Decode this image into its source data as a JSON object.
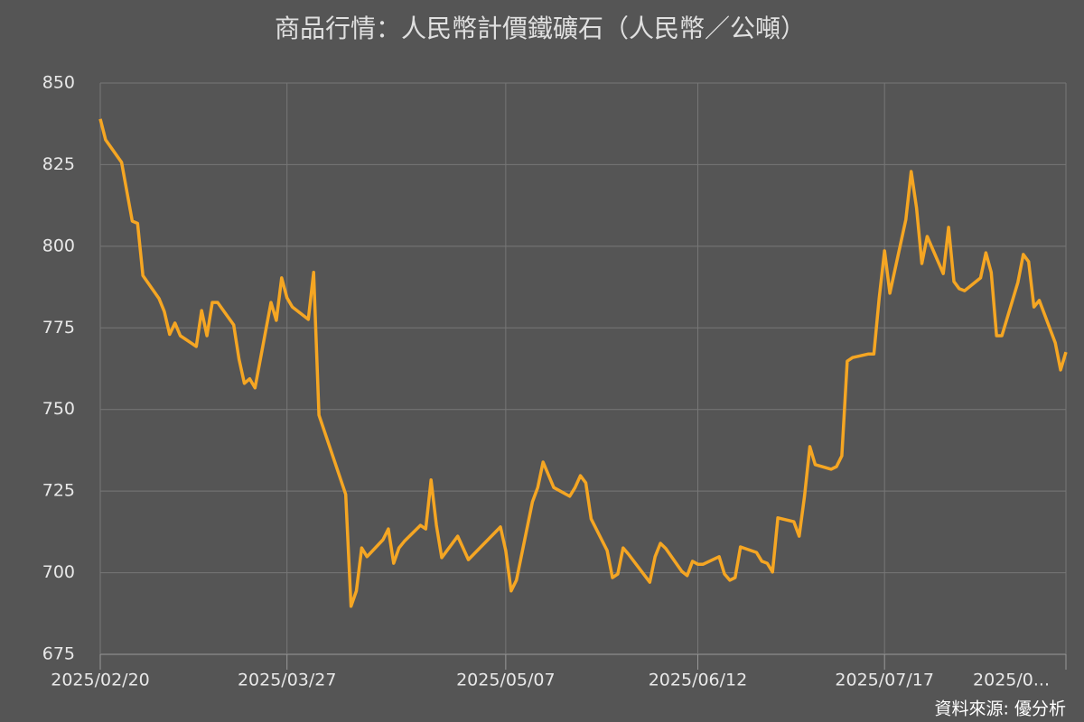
{
  "chart_data": {
    "type": "line",
    "title": "商品行情：人民幣計價鐵礦石（人民幣／公噸）",
    "source": "資料來源: 優分析",
    "x": [
      "2025/02/20",
      "2025/02/21",
      "2025/02/24",
      "2025/02/26",
      "2025/02/27",
      "2025/02/28",
      "2025/03/03",
      "2025/03/04",
      "2025/03/05",
      "2025/03/06",
      "2025/03/07",
      "2025/03/10",
      "2025/03/11",
      "2025/03/12",
      "2025/03/13",
      "2025/03/14",
      "2025/03/17",
      "2025/03/18",
      "2025/03/19",
      "2025/03/20",
      "2025/03/21",
      "2025/03/24",
      "2025/03/25",
      "2025/03/26",
      "2025/03/27",
      "2025/03/28",
      "2025/03/31",
      "2025/04/01",
      "2025/04/02",
      "2025/04/07",
      "2025/04/08",
      "2025/04/09",
      "2025/04/10",
      "2025/04/11",
      "2025/04/14",
      "2025/04/15",
      "2025/04/16",
      "2025/04/17",
      "2025/04/18",
      "2025/04/21",
      "2025/04/22",
      "2025/04/23",
      "2025/04/24",
      "2025/04/25",
      "2025/04/28",
      "2025/04/30",
      "2025/05/06",
      "2025/05/07",
      "2025/05/08",
      "2025/05/09",
      "2025/05/12",
      "2025/05/13",
      "2025/05/14",
      "2025/05/16",
      "2025/05/19",
      "2025/05/20",
      "2025/05/21",
      "2025/05/22",
      "2025/05/23",
      "2025/05/26",
      "2025/05/27",
      "2025/05/28",
      "2025/05/29",
      "2025/05/30",
      "2025/06/03",
      "2025/06/04",
      "2025/06/05",
      "2025/06/06",
      "2025/06/09",
      "2025/06/10",
      "2025/06/11",
      "2025/06/12",
      "2025/06/13",
      "2025/06/16",
      "2025/06/17",
      "2025/06/18",
      "2025/06/19",
      "2025/06/20",
      "2025/06/23",
      "2025/06/24",
      "2025/06/25",
      "2025/06/26",
      "2025/06/27",
      "2025/06/30",
      "2025/07/01",
      "2025/07/02",
      "2025/07/03",
      "2025/07/04",
      "2025/07/07",
      "2025/07/08",
      "2025/07/09",
      "2025/07/10",
      "2025/07/11",
      "2025/07/14",
      "2025/07/15",
      "2025/07/16",
      "2025/07/17",
      "2025/07/18",
      "2025/07/21",
      "2025/07/22",
      "2025/07/23",
      "2025/07/24",
      "2025/07/25",
      "2025/07/28",
      "2025/07/29",
      "2025/07/30",
      "2025/07/31",
      "2025/08/01",
      "2025/08/04",
      "2025/08/05",
      "2025/08/06",
      "2025/08/07",
      "2025/08/08",
      "2025/08/11",
      "2025/08/12",
      "2025/08/13",
      "2025/08/14",
      "2025/08/15",
      "2025/08/18",
      "2025/08/19",
      "2025/08/20"
    ],
    "series": [
      {
        "color": "#f5a623",
        "values": [
          839,
          832.6,
          825.7,
          807.7,
          807,
          791,
          784,
          780,
          773,
          776.5,
          772.6,
          769.3,
          780.3,
          772.6,
          782.8,
          782.8,
          775.9,
          765.4,
          758,
          759.4,
          756.6,
          782.8,
          777.3,
          790.3,
          784.2,
          781.4,
          777.6,
          792,
          748.3,
          724,
          689.7,
          694.4,
          707.6,
          704.9,
          710.1,
          713.4,
          702.9,
          707.6,
          709.6,
          714.5,
          713.4,
          728.4,
          714.5,
          704.6,
          711.2,
          704,
          714,
          706.7,
          694.4,
          697.7,
          721.7,
          726.1,
          733.9,
          726.1,
          723.4,
          726.1,
          729.7,
          727.5,
          716.5,
          706.8,
          698.5,
          699.6,
          707.6,
          705.7,
          697.1,
          704.9,
          709,
          707.4,
          700.4,
          699.1,
          703.5,
          702.6,
          702.6,
          704.9,
          699.6,
          697.7,
          698.5,
          707.9,
          706.2,
          703.5,
          702.9,
          700.2,
          716.8,
          715.6,
          711.2,
          723.4,
          738.6,
          733.1,
          731.7,
          732.5,
          735.8,
          764.8,
          765.9,
          767,
          767,
          784.2,
          798.6,
          785.6,
          808.2,
          822.9,
          811.8,
          794.7,
          803,
          791.6,
          805.8,
          789.2,
          787,
          786.4,
          790.3,
          798,
          792,
          772.6,
          772.6,
          788.9,
          797.5,
          795.3,
          781.4,
          783.4,
          770.4,
          762.1,
          767.6
        ]
      }
    ],
    "xlim": [
      "2025/02/20",
      "2025/08/20"
    ],
    "xticks": [
      "2025/02/20",
      "2025/03/27",
      "2025/05/07",
      "2025/06/12",
      "2025/07/17",
      {
        "value": "2025/08/20",
        "label": "2025/0..."
      }
    ],
    "ylim": [
      675,
      850
    ],
    "yticks": [
      675,
      700,
      725,
      750,
      775,
      800,
      825,
      850
    ],
    "grid": true
  }
}
